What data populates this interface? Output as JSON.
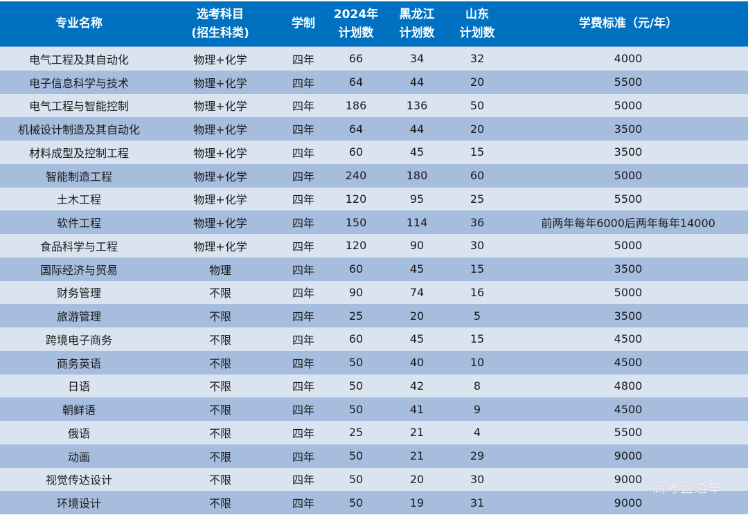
{
  "header": {
    "major": "专业名称",
    "subject_line1": "选考科目",
    "subject_line2": "(招生科类)",
    "duration": "学制",
    "plan2024_line1": "2024年",
    "plan2024_line2": "计划数",
    "hlj_line1": "黑龙江",
    "hlj_line2": "计划数",
    "sd_line1": "山东",
    "sd_line2": "计划数",
    "tuition": "学费标准（元/年）"
  },
  "rows": [
    {
      "major": "电气工程及其自动化",
      "subject": "物理+化学",
      "duration": "四年",
      "plan2024": "66",
      "hlj": "34",
      "sd": "32",
      "tuition": "4000"
    },
    {
      "major": "电子信息科学与技术",
      "subject": "物理+化学",
      "duration": "四年",
      "plan2024": "64",
      "hlj": "44",
      "sd": "20",
      "tuition": "5500"
    },
    {
      "major": "电气工程与智能控制",
      "subject": "物理+化学",
      "duration": "四年",
      "plan2024": "186",
      "hlj": "136",
      "sd": "50",
      "tuition": "5000"
    },
    {
      "major": "机械设计制造及其自动化",
      "subject": "物理+化学",
      "duration": "四年",
      "plan2024": "64",
      "hlj": "44",
      "sd": "20",
      "tuition": "3500"
    },
    {
      "major": "材料成型及控制工程",
      "subject": "物理+化学",
      "duration": "四年",
      "plan2024": "60",
      "hlj": "45",
      "sd": "15",
      "tuition": "3500"
    },
    {
      "major": "智能制造工程",
      "subject": "物理+化学",
      "duration": "四年",
      "plan2024": "240",
      "hlj": "180",
      "sd": "60",
      "tuition": "5000"
    },
    {
      "major": "土木工程",
      "subject": "物理+化学",
      "duration": "四年",
      "plan2024": "120",
      "hlj": "95",
      "sd": "25",
      "tuition": "5500"
    },
    {
      "major": "软件工程",
      "subject": "物理+化学",
      "duration": "四年",
      "plan2024": "150",
      "hlj": "114",
      "sd": "36",
      "tuition": "前两年每年6000后两年每年14000"
    },
    {
      "major": "食品科学与工程",
      "subject": "物理+化学",
      "duration": "四年",
      "plan2024": "120",
      "hlj": "90",
      "sd": "30",
      "tuition": "5000"
    },
    {
      "major": "国际经济与贸易",
      "subject": "物理",
      "duration": "四年",
      "plan2024": "60",
      "hlj": "45",
      "sd": "15",
      "tuition": "3500"
    },
    {
      "major": "财务管理",
      "subject": "不限",
      "duration": "四年",
      "plan2024": "90",
      "hlj": "74",
      "sd": "16",
      "tuition": "5000"
    },
    {
      "major": "旅游管理",
      "subject": "不限",
      "duration": "四年",
      "plan2024": "25",
      "hlj": "20",
      "sd": "5",
      "tuition": "3500"
    },
    {
      "major": "跨境电子商务",
      "subject": "不限",
      "duration": "四年",
      "plan2024": "60",
      "hlj": "45",
      "sd": "15",
      "tuition": "4500"
    },
    {
      "major": "商务英语",
      "subject": "不限",
      "duration": "四年",
      "plan2024": "50",
      "hlj": "40",
      "sd": "10",
      "tuition": "4500"
    },
    {
      "major": "日语",
      "subject": "不限",
      "duration": "四年",
      "plan2024": "50",
      "hlj": "42",
      "sd": "8",
      "tuition": "4800"
    },
    {
      "major": "朝鲜语",
      "subject": "不限",
      "duration": "四年",
      "plan2024": "50",
      "hlj": "41",
      "sd": "9",
      "tuition": "4500"
    },
    {
      "major": "俄语",
      "subject": "不限",
      "duration": "四年",
      "plan2024": "25",
      "hlj": "21",
      "sd": "4",
      "tuition": "5500"
    },
    {
      "major": "动画",
      "subject": "不限",
      "duration": "四年",
      "plan2024": "50",
      "hlj": "21",
      "sd": "29",
      "tuition": "9000"
    },
    {
      "major": "视觉传达设计",
      "subject": "不限",
      "duration": "四年",
      "plan2024": "50",
      "hlj": "20",
      "sd": "30",
      "tuition": "9000"
    },
    {
      "major": "环境设计",
      "subject": "不限",
      "duration": "四年",
      "plan2024": "50",
      "hlj": "19",
      "sd": "31",
      "tuition": "9000"
    }
  ],
  "watermark": "高考直通车",
  "colors": {
    "header_bg": "#0070C0",
    "row_light": "#DAE3F0",
    "row_dark": "#A6BDDE"
  }
}
